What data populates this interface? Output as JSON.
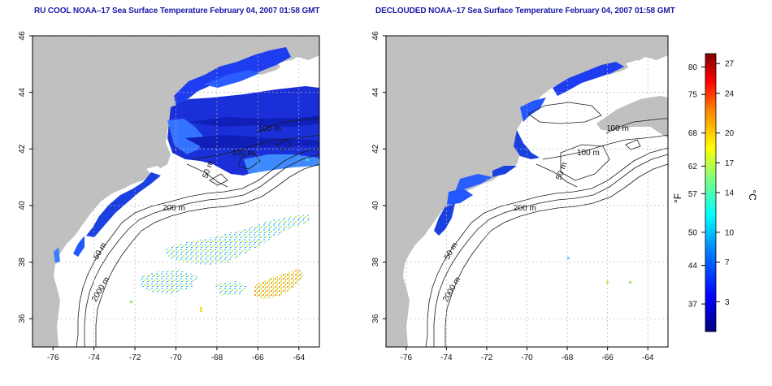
{
  "panels": [
    {
      "id": "raw",
      "title": "RU COOL NOAA–17 Sea Surface Temperature February 04, 2007 01:58 GMT",
      "contour_labels": [
        "100 m",
        "100 m",
        "50 m",
        "200 m",
        "50 m",
        "2000 m"
      ]
    },
    {
      "id": "declouded",
      "title": "DECLOUDED NOAA–17 Sea Surface Temperature February 04, 2007 01:58 GMT",
      "contour_labels": [
        "100 m",
        "100 m",
        "50 m",
        "200 m",
        "50 m",
        "2000 m"
      ]
    }
  ],
  "axes": {
    "longitude_ticks": [
      "-76",
      "-74",
      "-72",
      "-70",
      "-68",
      "-66",
      "-64"
    ],
    "latitude_ticks": [
      "46",
      "44",
      "42",
      "40",
      "38",
      "36"
    ],
    "lon_range": [
      -77,
      -63
    ],
    "lat_range": [
      35,
      46
    ]
  },
  "colorbar": {
    "fahrenheit_label": "°F",
    "celsius_label": "°C",
    "fahrenheit_ticks": [
      "80",
      "75",
      "68",
      "62",
      "57",
      "50",
      "44",
      "37"
    ],
    "celsius_ticks": [
      "27",
      "24",
      "20",
      "17",
      "14",
      "10",
      "7",
      "3"
    ],
    "celsius_range": [
      0,
      28
    ],
    "colors": [
      "#00007f",
      "#0000ff",
      "#007fff",
      "#00ffff",
      "#7fff7f",
      "#ffff00",
      "#ff7f00",
      "#ff0000",
      "#7f0000"
    ]
  },
  "colors": {
    "land": "#c0c0c0",
    "ocean": "#ffffff",
    "title": "#1a1aa8",
    "grid": "#b4b4b4"
  }
}
